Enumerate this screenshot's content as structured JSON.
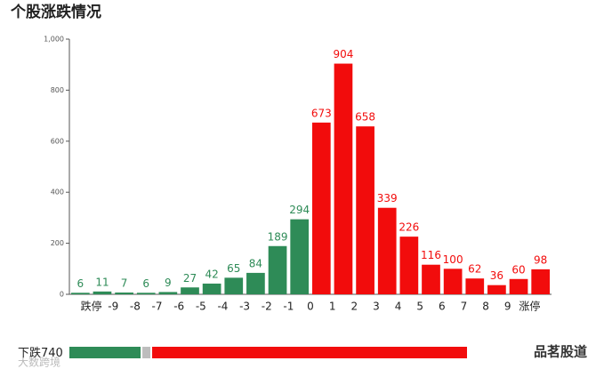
{
  "chart_data": {
    "type": "bar",
    "title": "个股涨跌情况",
    "categories": [
      "跌停",
      "-9",
      "-8",
      "-7",
      "-6",
      "-5",
      "-4",
      "-3",
      "-2",
      "-1",
      "0",
      "1",
      "2",
      "3",
      "4",
      "5",
      "6",
      "7",
      "8",
      "9",
      "涨停",
      null
    ],
    "values": [
      6,
      11,
      7,
      6,
      9,
      27,
      42,
      65,
      84,
      189,
      294,
      673,
      904,
      658,
      339,
      226,
      116,
      100,
      62,
      36,
      60,
      98
    ],
    "colors": [
      "#2e8b57",
      "#2e8b57",
      "#2e8b57",
      "#2e8b57",
      "#2e8b57",
      "#2e8b57",
      "#2e8b57",
      "#2e8b57",
      "#2e8b57",
      "#2e8b57",
      "#2e8b57",
      "#f20c0c",
      "#f20c0c",
      "#f20c0c",
      "#f20c0c",
      "#f20c0c",
      "#f20c0c",
      "#f20c0c",
      "#f20c0c",
      "#f20c0c",
      "#f20c0c",
      "#f20c0c"
    ],
    "ylim": [
      0,
      1000
    ],
    "yticks": [
      0,
      200,
      400,
      600,
      800,
      {
        "value": 1000,
        "label": "1,000"
      }
    ],
    "summary": {
      "label": "下跌",
      "down": 740,
      "flat": 83,
      "up": 3272,
      "colors": [
        "#2e8b57",
        "#bdbdbd",
        "#f20c0c"
      ]
    },
    "watermarks": [
      "大数跨境",
      "品茗股道"
    ]
  }
}
